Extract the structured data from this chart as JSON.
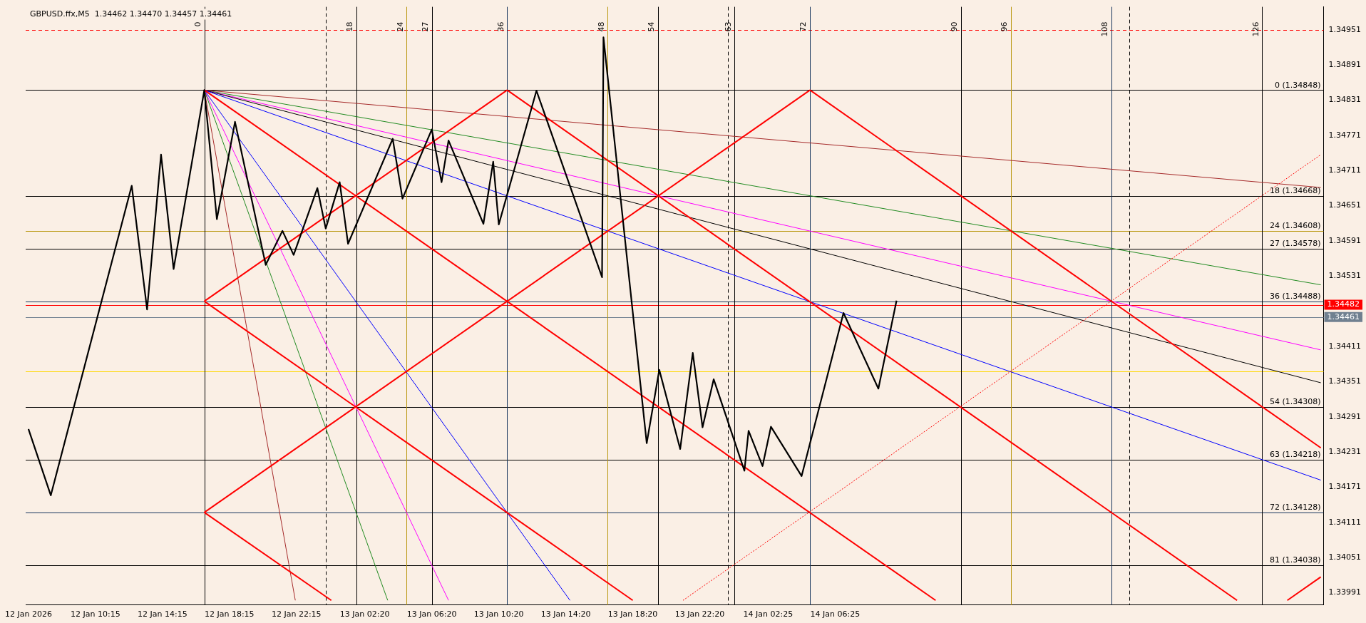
{
  "chart_data": {
    "type": "line",
    "title": "GBPUSD.ffx,M5  1.34462 1.34470 1.34457 1.34461",
    "marker": "none",
    "grid": false,
    "legend": false,
    "xlim": [
      "2026-01-12T06:05",
      "2026-01-15T11:35"
    ],
    "ylim": [
      1.3397,
      1.3499
    ],
    "xticks": [
      {
        "value": "2026-01-12T06:15",
        "label": "12 Jan 2026"
      },
      {
        "value": "2026-01-12T10:15",
        "label": "12 Jan 10:15"
      },
      {
        "value": "2026-01-12T14:15",
        "label": "12 Jan 14:15"
      },
      {
        "value": "2026-01-12T18:15",
        "label": "12 Jan 18:15"
      },
      {
        "value": "2026-01-12T22:15",
        "label": "12 Jan 22:15"
      },
      {
        "value": "2026-01-13T02:20",
        "label": "13 Jan 02:20"
      },
      {
        "value": "2026-01-13T06:20",
        "label": "13 Jan 06:20"
      },
      {
        "value": "2026-01-13T10:20",
        "label": "13 Jan 10:20"
      },
      {
        "value": "2026-01-13T14:20",
        "label": "13 Jan 14:20"
      },
      {
        "value": "2026-01-13T18:20",
        "label": "13 Jan 18:20"
      },
      {
        "value": "2026-01-13T22:20",
        "label": "13 Jan 22:20"
      },
      {
        "value": "2026-01-14T02:25",
        "label": "14 Jan 02:25"
      },
      {
        "value": "2026-01-14T06:25",
        "label": "14 Jan 06:25"
      }
    ],
    "yticks": [
      1.34951,
      1.34891,
      1.34831,
      1.34771,
      1.34711,
      1.34651,
      1.34591,
      1.34531,
      1.34411,
      1.34351,
      1.34291,
      1.34231,
      1.34171,
      1.34111,
      1.34051,
      1.33991
    ],
    "series": [
      {
        "color": "#000000",
        "x": [
          "2026-01-12T06:15",
          "2026-01-12T07:35",
          "2026-01-12T12:25",
          "2026-01-12T13:20",
          "2026-01-12T14:10",
          "2026-01-12T14:55",
          "2026-01-12T16:45",
          "2026-01-12T17:30",
          "2026-01-12T18:35",
          "2026-01-12T20:25",
          "2026-01-12T21:25",
          "2026-01-12T22:05",
          "2026-01-12T23:30",
          "2026-01-13T00:00",
          "2026-01-13T00:50",
          "2026-01-13T01:20",
          "2026-01-13T04:00",
          "2026-01-13T04:35",
          "2026-01-13T06:20",
          "2026-01-13T06:55",
          "2026-01-13T07:20",
          "2026-01-13T09:25",
          "2026-01-13T10:00",
          "2026-01-13T10:20",
          "2026-01-13T12:35",
          "2026-01-13T16:30",
          "2026-01-13T16:35",
          "2026-01-13T19:10",
          "2026-01-13T19:55",
          "2026-01-13T21:10",
          "2026-01-13T21:55",
          "2026-01-13T22:30",
          "2026-01-13T23:10",
          "2026-01-14T01:00",
          "2026-01-14T01:15",
          "2026-01-14T02:05",
          "2026-01-14T02:35",
          "2026-01-14T04:25",
          "2026-01-14T06:55",
          "2026-01-14T09:00",
          "2026-01-14T10:05"
        ],
        "values": [
          1.3427,
          1.34157,
          1.34685,
          1.34474,
          1.34738,
          1.34543,
          1.34848,
          1.34628,
          1.34794,
          1.3455,
          1.34608,
          1.34567,
          1.34681,
          1.34612,
          1.34691,
          1.34586,
          1.34765,
          1.34663,
          1.34781,
          1.34691,
          1.34762,
          1.3462,
          1.34726,
          1.34619,
          1.34847,
          1.34529,
          1.34938,
          1.34246,
          1.34371,
          1.34236,
          1.344,
          1.34273,
          1.34355,
          1.34199,
          1.34267,
          1.34207,
          1.34274,
          1.3419,
          1.34468,
          1.34339,
          1.34489
        ]
      },
      {
        "color": "#ff0000",
        "x": [
          "2026-01-12T16:45",
          "2026-01-13T10:50"
        ],
        "values": [
          1.34488,
          1.34848
        ]
      },
      {
        "color": "#ff0000",
        "x": [
          "2026-01-13T10:50",
          "2026-01-15T06:25"
        ],
        "values": [
          1.34848,
          1.33978
        ]
      },
      {
        "color": "#ff0000",
        "x": [
          "2026-01-14T04:55",
          "2026-01-15T11:25"
        ],
        "values": [
          1.34848,
          1.34238
        ]
      },
      {
        "color": "#ff0000",
        "x": [
          "2026-01-12T16:45",
          "2026-01-14T12:25"
        ],
        "values": [
          1.34848,
          1.33978
        ]
      },
      {
        "color": "#ff0000",
        "x": [
          "2026-01-12T16:45",
          "2026-01-14T04:55"
        ],
        "values": [
          1.34128,
          1.34848
        ]
      },
      {
        "color": "#ff0000",
        "x": [
          "2026-01-12T16:45",
          "2026-01-13T18:20"
        ],
        "values": [
          1.34488,
          1.33978
        ]
      },
      {
        "color": "#ff0000",
        "x": [
          "2026-01-12T16:45",
          "2026-01-13T00:20"
        ],
        "values": [
          1.34128,
          1.33978
        ]
      },
      {
        "color": "#ff0000",
        "x": [
          "2026-01-15T09:25",
          "2026-01-15T11:25"
        ],
        "values": [
          1.33978,
          1.34018
        ]
      },
      {
        "color": "#ff0000",
        "line_style": "dotted",
        "x": [
          "2026-01-13T21:20",
          "2026-01-15T11:25"
        ],
        "values": [
          1.33978,
          1.34738
        ]
      },
      {
        "color": "#a52a2a",
        "x": [
          "2026-01-12T16:45",
          "2026-01-12T22:11"
        ],
        "values": [
          1.34848,
          1.33978
        ]
      },
      {
        "color": "#228b22",
        "x": [
          "2026-01-12T16:45",
          "2026-01-13T03:42"
        ],
        "values": [
          1.34848,
          1.33978
        ]
      },
      {
        "color": "#ff00ff",
        "x": [
          "2026-01-12T16:45",
          "2026-01-13T07:20"
        ],
        "values": [
          1.34848,
          1.33978
        ]
      },
      {
        "color": "#0000ff",
        "x": [
          "2026-01-12T16:45",
          "2026-01-13T14:35"
        ],
        "values": [
          1.34848,
          1.33978
        ]
      },
      {
        "color": "#0000ff",
        "x": [
          "2026-01-12T16:45",
          "2026-01-15T11:25"
        ],
        "values": [
          1.34848,
          1.34183
        ]
      },
      {
        "color": "#000000",
        "x": [
          "2026-01-12T16:45",
          "2026-01-15T11:25"
        ],
        "values": [
          1.34848,
          1.34349
        ]
      },
      {
        "color": "#ff00ff",
        "x": [
          "2026-01-12T16:45",
          "2026-01-15T11:25"
        ],
        "values": [
          1.34848,
          1.34405
        ]
      },
      {
        "color": "#228b22",
        "x": [
          "2026-01-12T16:45",
          "2026-01-15T11:25"
        ],
        "values": [
          1.34848,
          1.34516
        ]
      },
      {
        "color": "#a52a2a",
        "x": [
          "2026-01-12T16:45",
          "2026-01-15T11:25"
        ],
        "values": [
          1.34848,
          1.34682
        ]
      }
    ],
    "ref_lines": [
      {
        "axis": "y",
        "value": 1.34848,
        "label": "0 (1.34848)",
        "color": "#000000"
      },
      {
        "axis": "y",
        "value": 1.34668,
        "label": "18 (1.34668)",
        "color": "#000000"
      },
      {
        "axis": "y",
        "value": 1.34608,
        "label": "24 (1.34608)",
        "color": "#b8960c"
      },
      {
        "axis": "y",
        "value": 1.34578,
        "label": "27 (1.34578)",
        "color": "#000000"
      },
      {
        "axis": "y",
        "value": 1.34488,
        "label": "36 (1.34488)",
        "color": "#17365d"
      },
      {
        "axis": "y",
        "value": 1.34308,
        "label": "54 (1.34308)",
        "color": "#000000"
      },
      {
        "axis": "y",
        "value": 1.34218,
        "label": "63 (1.34218)",
        "color": "#000000"
      },
      {
        "axis": "y",
        "value": 1.34128,
        "label": "72 (1.34128)",
        "color": "#17365d"
      },
      {
        "axis": "y",
        "value": 1.34038,
        "label": "81 (1.34038)",
        "color": "#000000"
      },
      {
        "axis": "y",
        "value": 1.34368,
        "color": "#ffd700"
      },
      {
        "axis": "y",
        "value": 1.34951,
        "color": "#ff0000",
        "line_style": "dashed"
      },
      {
        "axis": "y",
        "value": 1.34482,
        "label": "1.34482",
        "color": "#ff0000"
      },
      {
        "axis": "y",
        "value": 1.34461,
        "label": "1.34461",
        "color": "#708090"
      },
      {
        "axis": "x",
        "value": "2026-01-12T16:45",
        "color": "#000000"
      },
      {
        "axis": "x",
        "value": "2026-01-13T01:50",
        "color": "#000000"
      },
      {
        "axis": "x",
        "value": "2026-01-13T04:50",
        "color": "#b8960c"
      },
      {
        "axis": "x",
        "value": "2026-01-13T06:20",
        "color": "#000000"
      },
      {
        "axis": "x",
        "value": "2026-01-13T10:50",
        "color": "#17365d"
      },
      {
        "axis": "x",
        "value": "2026-01-13T16:50",
        "color": "#b8960c"
      },
      {
        "axis": "x",
        "value": "2026-01-13T19:50",
        "color": "#000000"
      },
      {
        "axis": "x",
        "value": "2026-01-14T00:25",
        "color": "#000000"
      },
      {
        "axis": "x",
        "value": "2026-01-14T04:55",
        "color": "#17365d"
      },
      {
        "axis": "x",
        "value": "2026-01-14T13:55",
        "color": "#000000"
      },
      {
        "axis": "x",
        "value": "2026-01-14T16:55",
        "color": "#b8960c"
      },
      {
        "axis": "x",
        "value": "2026-01-14T22:55",
        "color": "#17365d"
      },
      {
        "axis": "x",
        "value": "2026-01-15T07:55",
        "color": "#000000"
      },
      {
        "axis": "x",
        "value": "2026-01-13T00:00",
        "color": "#000000",
        "line_style": "dashed"
      },
      {
        "axis": "x",
        "value": "2026-01-14T00:00",
        "color": "#000000",
        "line_style": "dashed"
      },
      {
        "axis": "x",
        "value": "2026-01-15T00:00",
        "color": "#000000",
        "line_style": "dashed"
      }
    ],
    "annotations": [
      {
        "text": "0",
        "x": "2026-01-12T16:45",
        "y": 1.3499
      },
      {
        "text": "18",
        "x": "2026-01-13T01:50",
        "y": 1.3499
      },
      {
        "text": "24",
        "x": "2026-01-13T04:50",
        "y": 1.3499
      },
      {
        "text": "27",
        "x": "2026-01-13T06:20",
        "y": 1.3499
      },
      {
        "text": "36",
        "x": "2026-01-13T10:50",
        "y": 1.3499
      },
      {
        "text": "48",
        "x": "2026-01-13T16:50",
        "y": 1.3499
      },
      {
        "text": "54",
        "x": "2026-01-13T19:50",
        "y": 1.3499
      },
      {
        "text": "63",
        "x": "2026-01-14T00:25",
        "y": 1.3499
      },
      {
        "text": "72",
        "x": "2026-01-14T04:55",
        "y": 1.3499
      },
      {
        "text": "90",
        "x": "2026-01-14T13:55",
        "y": 1.3499
      },
      {
        "text": "96",
        "x": "2026-01-14T16:55",
        "y": 1.3499
      },
      {
        "text": "108",
        "x": "2026-01-14T22:55",
        "y": 1.3499
      },
      {
        "text": "126",
        "x": "2026-01-15T07:55",
        "y": 1.3499
      }
    ]
  }
}
